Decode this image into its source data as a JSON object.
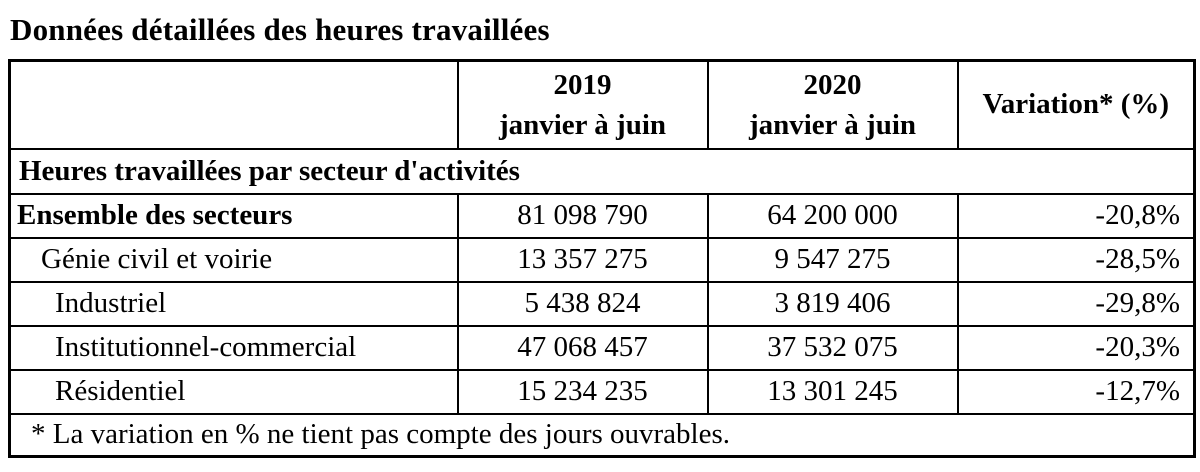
{
  "title": "Données détaillées des heures travaillées",
  "table": {
    "columns": {
      "year_2019": {
        "line1": "2019",
        "line2": "janvier à juin"
      },
      "year_2020": {
        "line1": "2020",
        "line2": "janvier à juin"
      },
      "variation": "Variation* (%)"
    },
    "section_header": "Heures travaillées par secteur d'activités",
    "rows": [
      {
        "label": "Ensemble des secteurs",
        "y2019": "81 098 790",
        "y2020": "64 200 000",
        "variation": "-20,8%"
      },
      {
        "label": "Génie civil et voirie",
        "y2019": "13 357 275",
        "y2020": "9 547 275",
        "variation": "-28,5%"
      },
      {
        "label": "Industriel",
        "y2019": "5 438 824",
        "y2020": "3 819 406",
        "variation": "-29,8%"
      },
      {
        "label": "Institutionnel-commercial",
        "y2019": "47 068 457",
        "y2020": "37 532 075",
        "variation": "-20,3%"
      },
      {
        "label": "Résidentiel",
        "y2019": "15 234 235",
        "y2020": "13 301 245",
        "variation": "-12,7%"
      }
    ],
    "footnote": "* La variation en % ne tient pas compte des jours ouvrables."
  }
}
